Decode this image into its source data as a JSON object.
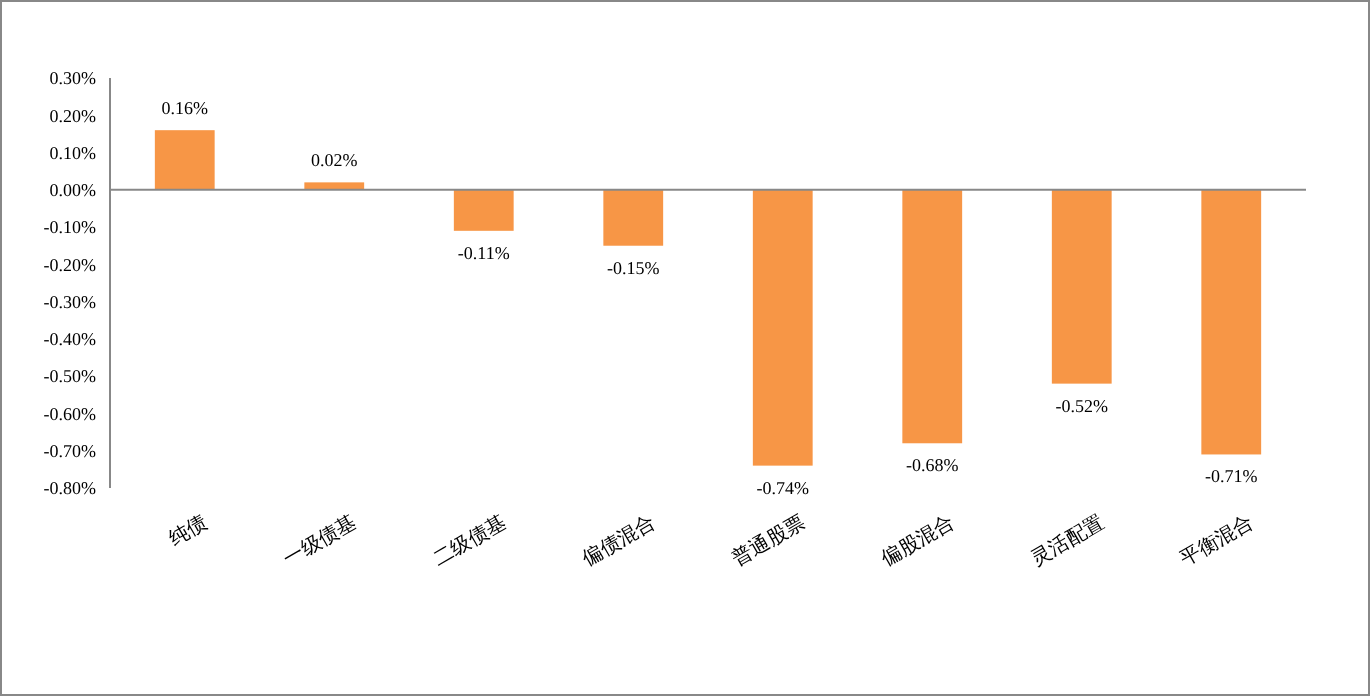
{
  "chart_data": {
    "type": "bar",
    "categories": [
      "纯债",
      "一级债基",
      "二级债基",
      "偏债混合",
      "普通股票",
      "偏股混合",
      "灵活配置",
      "平衡混合"
    ],
    "values": [
      0.16,
      0.02,
      -0.11,
      -0.15,
      -0.74,
      -0.68,
      -0.52,
      -0.71
    ],
    "value_labels": [
      "0.16%",
      "0.02%",
      "-0.11%",
      "-0.15%",
      "-0.74%",
      "-0.68%",
      "-0.52%",
      "-0.71%"
    ],
    "color": "#f79646",
    "ylim": [
      -0.8,
      0.3
    ],
    "yticks": [
      {
        "value": 0.3,
        "label": "0.30%"
      },
      {
        "value": 0.2,
        "label": "0.20%"
      },
      {
        "value": 0.1,
        "label": "0.10%"
      },
      {
        "value": 0,
        "label": "0.00%"
      },
      {
        "value": -0.1,
        "label": "-0.10%"
      },
      {
        "value": -0.2,
        "label": "-0.20%"
      },
      {
        "value": -0.3,
        "label": "-0.30%"
      },
      {
        "value": -0.4,
        "label": "-0.40%"
      },
      {
        "value": -0.5,
        "label": "-0.50%"
      },
      {
        "value": -0.6,
        "label": "-0.60%"
      },
      {
        "value": -0.7,
        "label": "-0.70%"
      },
      {
        "value": -0.8,
        "label": "-0.80%"
      }
    ]
  }
}
